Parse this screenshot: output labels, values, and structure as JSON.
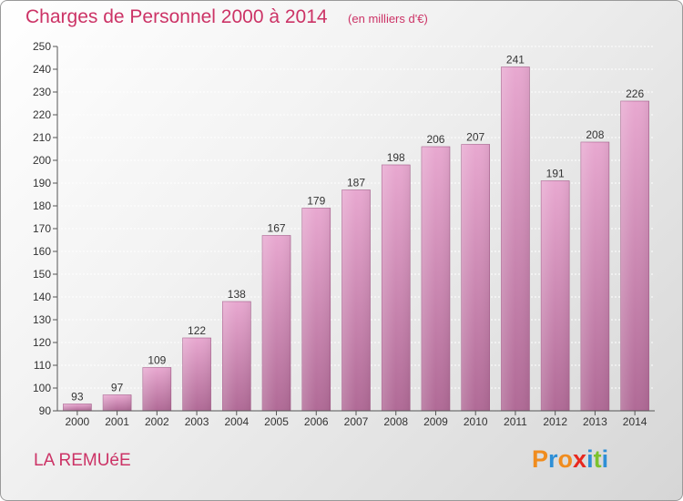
{
  "chart_data": {
    "type": "bar",
    "title": "Charges de Personnel 2000 à 2014",
    "unit": "(en milliers d'€)",
    "categories": [
      "2000",
      "2001",
      "2002",
      "2003",
      "2004",
      "2005",
      "2006",
      "2007",
      "2008",
      "2009",
      "2010",
      "2011",
      "2012",
      "2013",
      "2014"
    ],
    "values": [
      93,
      97,
      109,
      122,
      138,
      167,
      179,
      187,
      198,
      206,
      207,
      241,
      191,
      208,
      226
    ],
    "ylim": [
      90,
      250
    ],
    "yticks": [
      90,
      100,
      110,
      120,
      130,
      140,
      150,
      160,
      170,
      180,
      190,
      200,
      210,
      220,
      230,
      240,
      250
    ],
    "grid": true,
    "colors": {
      "bar_top": "#e8a8d0",
      "bar_bottom": "#b06a96",
      "text": "#cc3366"
    }
  },
  "footer": {
    "commune": "LA REMUéE",
    "brand": "Proxiti",
    "brand_colors": [
      "#f08c1e",
      "#2e8fd6",
      "#f08c1e",
      "#e8281e",
      "#2e8fd6",
      "#7cc22e",
      "#2e8fd6"
    ]
  }
}
